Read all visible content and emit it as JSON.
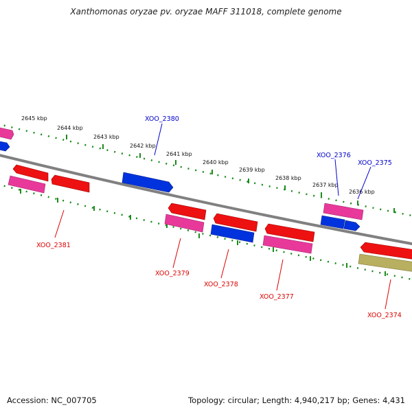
{
  "title": "Xanthomonas oryzae pv. oryzae MAFF 311018, complete genome",
  "footer": {
    "accession": "Accession: NC_007705",
    "summary": "Topology: circular; Length: 4,940,217 bp; Genes: 4,431"
  },
  "colors": {
    "backbone": "#808080",
    "ticks": "#1a8a1a",
    "forward_label": "#0000cc",
    "reverse_label": "#dd0000"
  },
  "kbp_labels": [
    "2645 kbp",
    "2644 kbp",
    "2643 kbp",
    "2642 kbp",
    "2641 kbp",
    "2640 kbp",
    "2639 kbp",
    "2638 kbp",
    "2637 kbp",
    "2636 kbp"
  ],
  "gene_labels": [
    {
      "name": "XOO_2380",
      "strand": "forward"
    },
    {
      "name": "XOO_2376",
      "strand": "forward"
    },
    {
      "name": "XOO_2375",
      "strand": "forward"
    },
    {
      "name": "XOO_2381",
      "strand": "reverse"
    },
    {
      "name": "XOO_2379",
      "strand": "reverse"
    },
    {
      "name": "XOO_2378",
      "strand": "reverse"
    },
    {
      "name": "XOO_2377",
      "strand": "reverse"
    },
    {
      "name": "XOO_2374",
      "strand": "reverse"
    }
  ],
  "features": [
    {
      "color": "#e8399a",
      "label": "pink"
    },
    {
      "color": "#0033dd",
      "label": "blue"
    },
    {
      "color": "#ee1111",
      "label": "red"
    },
    {
      "color": "#e8399a",
      "label": "pink"
    },
    {
      "color": "#ee1111",
      "label": "red"
    },
    {
      "color": "#0033dd",
      "label": "blue"
    },
    {
      "color": "#ee1111",
      "label": "red"
    },
    {
      "color": "#e8399a",
      "label": "pink"
    },
    {
      "color": "#ee1111",
      "label": "red"
    },
    {
      "color": "#0033dd",
      "label": "blue"
    },
    {
      "color": "#ee1111",
      "label": "red"
    },
    {
      "color": "#e8399a",
      "label": "pink"
    },
    {
      "color": "#e8399a",
      "label": "pink"
    },
    {
      "color": "#0033dd",
      "label": "blue"
    },
    {
      "color": "#0033dd",
      "label": "blue"
    },
    {
      "color": "#ee1111",
      "label": "red"
    },
    {
      "color": "#b8b060",
      "label": "olive"
    }
  ]
}
